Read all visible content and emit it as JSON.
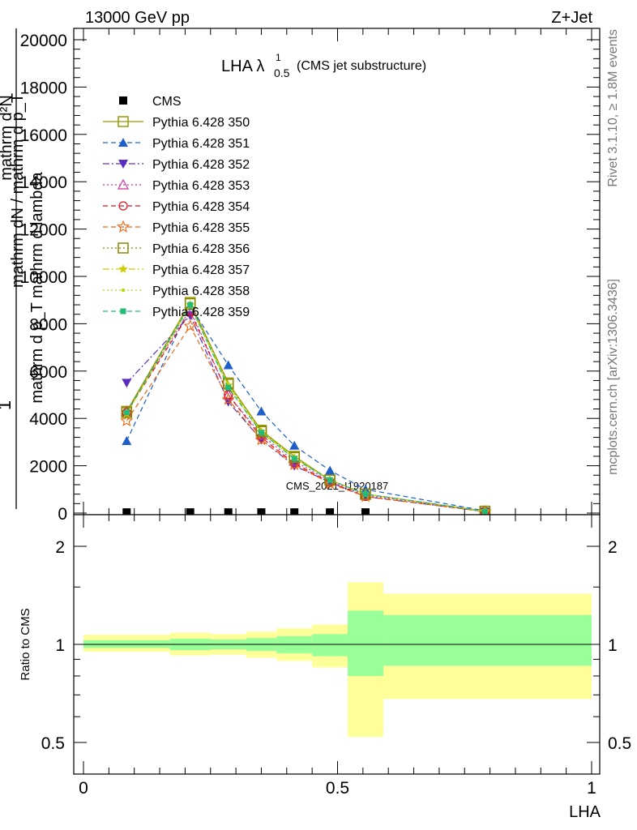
{
  "header": {
    "left": "13000 GeV pp",
    "right": "Z+Jet"
  },
  "side_labels": {
    "rivet": "Rivet 3.1.10, ≥ 1.8M events",
    "mcplots": "mcplots.cern.ch [arXiv:1306.3436]"
  },
  "watermark": "CMS_2021_I1920187",
  "chart_data": [
    {
      "type": "line",
      "title": "LHA λ",
      "title_sup": "1",
      "title_sub": "0.5",
      "title_suffix": "(CMS jet substructure)",
      "ylabel_top": "mathrm d²N",
      "ylabel_bottom": "mathrm d p_T mathrm d lambda",
      "ylabel_frac_num": "1",
      "ylabel_frac_den": "mathrm dN / mathrm d p_T",
      "xlim": [
        0,
        1
      ],
      "ylim": [
        0,
        20000
      ],
      "yticks": [
        0,
        2000,
        4000,
        6000,
        8000,
        10000,
        12000,
        14000,
        16000,
        18000,
        20000
      ],
      "ytick_labels": [
        "0",
        "2000",
        "4000",
        "6000",
        "8000",
        "10000",
        "12000",
        "14000",
        "16000",
        "18000",
        "20000"
      ],
      "x": [
        0.085,
        0.21,
        0.285,
        0.35,
        0.415,
        0.485,
        0.555,
        0.79
      ],
      "series": [
        {
          "name": "CMS",
          "color": "#000000",
          "marker": "square-filled",
          "dash": "none",
          "values": [
            30,
            30,
            30,
            30,
            30,
            30,
            30,
            0
          ]
        },
        {
          "name": "Pythia 6.428 350",
          "color": "#999900",
          "marker": "square-open",
          "dash": "solid",
          "values": [
            4300,
            8900,
            5500,
            3500,
            2400,
            1400,
            800,
            80
          ]
        },
        {
          "name": "Pythia 6.428 351",
          "color": "#1f5ec9",
          "marker": "triangle-up",
          "dash": "dashed",
          "values": [
            3050,
            8750,
            6250,
            4300,
            2850,
            1800,
            1000,
            100
          ]
        },
        {
          "name": "Pythia 6.428 352",
          "color": "#5a2ec0",
          "marker": "triangle-down",
          "dash": "dashdot",
          "values": [
            5500,
            8350,
            4700,
            3100,
            2000,
            1300,
            700,
            60
          ]
        },
        {
          "name": "Pythia 6.428 353",
          "color": "#cc3399",
          "marker": "triangle-open",
          "dash": "dotted",
          "values": [
            4300,
            8600,
            5000,
            3300,
            2200,
            1350,
            750,
            70
          ]
        },
        {
          "name": "Pythia 6.428 354",
          "color": "#dd1122",
          "marker": "circle-open",
          "dash": "dashed",
          "values": [
            4250,
            8500,
            5000,
            3200,
            2100,
            1300,
            700,
            70
          ]
        },
        {
          "name": "Pythia 6.428 355",
          "color": "#ee6611",
          "marker": "star-open",
          "dash": "dashed",
          "values": [
            3900,
            7900,
            4800,
            3100,
            2050,
            1250,
            700,
            60
          ]
        },
        {
          "name": "Pythia 6.428 356",
          "color": "#888800",
          "marker": "square-open",
          "dash": "dotted",
          "values": [
            4250,
            8850,
            5450,
            3450,
            2350,
            1400,
            800,
            80
          ]
        },
        {
          "name": "Pythia 6.428 357",
          "color": "#cccc00",
          "marker": "star-small",
          "dash": "dashdot",
          "values": [
            4200,
            8800,
            5400,
            3450,
            2350,
            1400,
            800,
            80
          ]
        },
        {
          "name": "Pythia 6.428 358",
          "color": "#aadd00",
          "marker": "dot",
          "dash": "dotted",
          "values": [
            4200,
            8750,
            5350,
            3400,
            2300,
            1400,
            800,
            80
          ]
        },
        {
          "name": "Pythia 6.428 359",
          "color": "#22bb77",
          "marker": "square-filled-small",
          "dash": "dashed",
          "values": [
            4250,
            8800,
            5300,
            3400,
            2300,
            1400,
            800,
            80
          ]
        }
      ]
    },
    {
      "type": "area",
      "xlabel": "LHA",
      "ylabel": "Ratio to CMS",
      "xlim": [
        0,
        1
      ],
      "ylim": [
        0.4,
        2.4
      ],
      "log_y": true,
      "xticks": [
        0,
        0.5,
        1
      ],
      "xtick_labels": [
        "0",
        "0.5",
        "1"
      ],
      "yticks": [
        0.5,
        1,
        2
      ],
      "ytick_labels": [
        "0.5",
        "1",
        "2"
      ],
      "bins": [
        0,
        0.17,
        0.25,
        0.32,
        0.38,
        0.45,
        0.52,
        0.59,
        1.0
      ],
      "inner_band": {
        "color": "#99ff99",
        "lo": [
          0.975,
          0.96,
          0.965,
          0.955,
          0.94,
          0.92,
          0.8,
          0.86
        ],
        "hi": [
          1.03,
          1.04,
          1.035,
          1.045,
          1.06,
          1.075,
          1.27,
          1.23
        ]
      },
      "outer_band": {
        "color": "#ffff99",
        "lo": [
          0.95,
          0.925,
          0.93,
          0.91,
          0.89,
          0.85,
          0.52,
          0.68
        ],
        "hi": [
          1.07,
          1.085,
          1.075,
          1.095,
          1.12,
          1.15,
          1.55,
          1.43
        ]
      },
      "reference_line": 1
    }
  ]
}
